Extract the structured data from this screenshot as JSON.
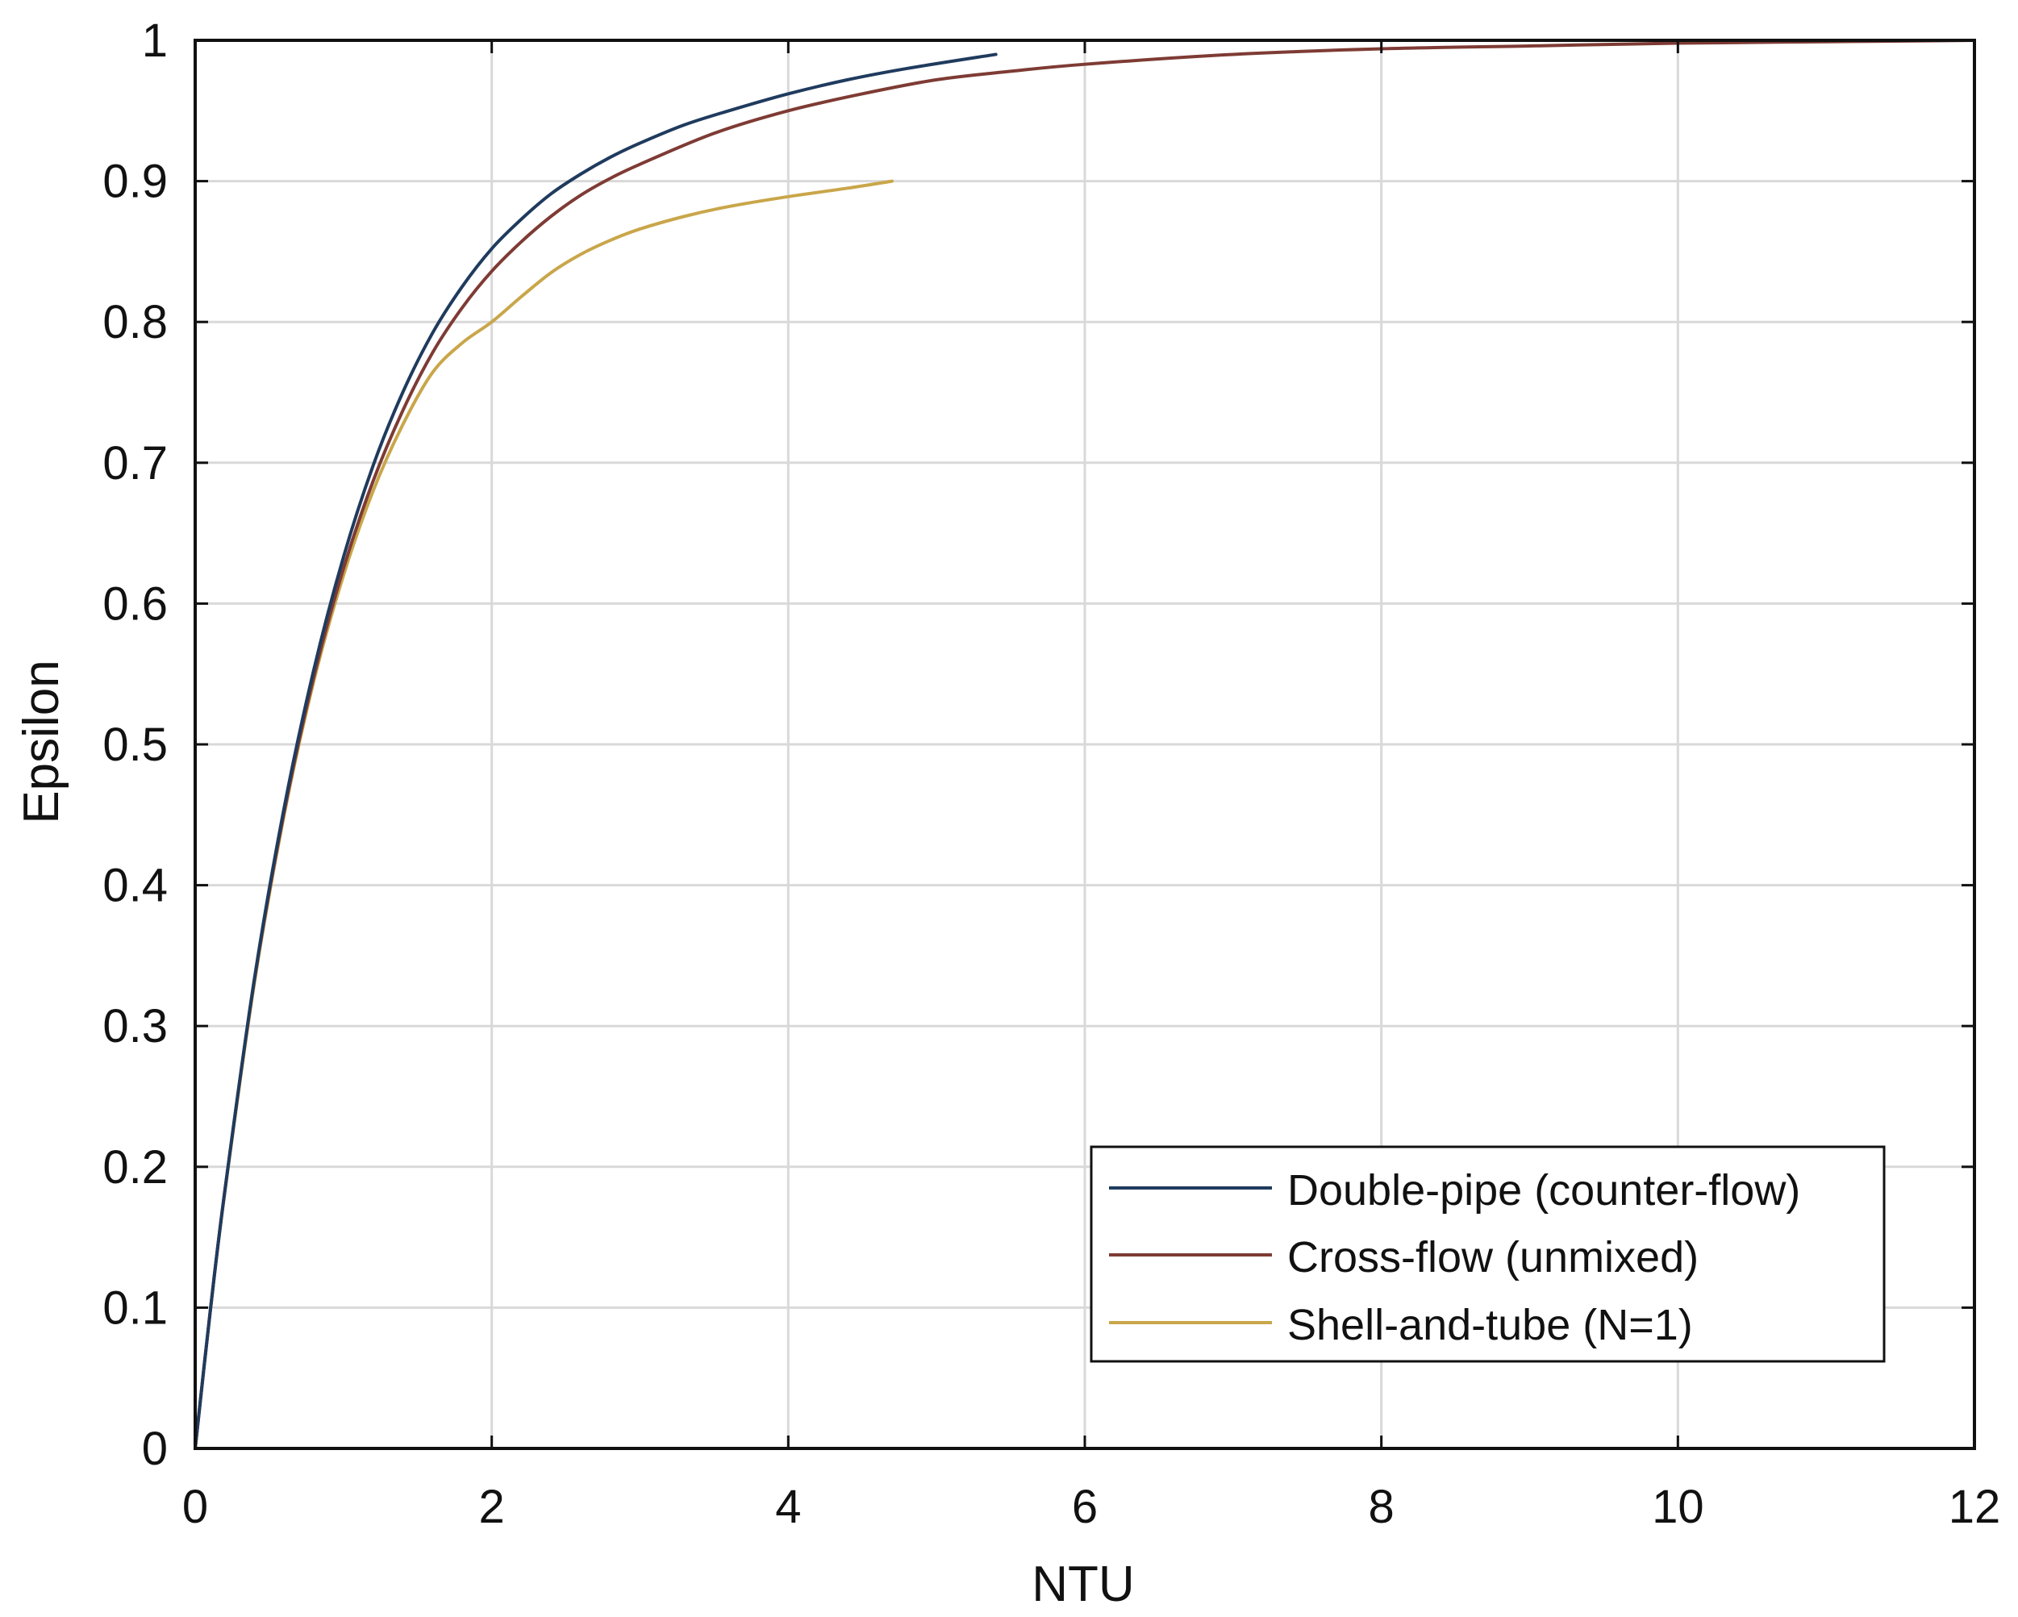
{
  "chart_data": {
    "type": "line",
    "title": "",
    "xlabel": "NTU",
    "ylabel": "Epsilon",
    "xlim": [
      0,
      12
    ],
    "ylim": [
      0,
      1
    ],
    "x_ticks": [
      0,
      2,
      4,
      6,
      8,
      10,
      12
    ],
    "y_ticks": [
      0,
      0.1,
      0.2,
      0.3,
      0.4,
      0.5,
      0.6,
      0.7,
      0.8,
      0.9,
      1
    ],
    "x_tick_labels": [
      "0",
      "2",
      "4",
      "6",
      "8",
      "10",
      "12"
    ],
    "y_tick_labels": [
      "0",
      "0.1",
      "0.2",
      "0.3",
      "0.4",
      "0.5",
      "0.6",
      "0.7",
      "0.8",
      "0.9",
      "1"
    ],
    "grid": true,
    "legend_position": "bottom-right",
    "series": [
      {
        "name": "Double-pipe (counter-flow)",
        "color": "#1f3b5e",
        "x": [
          0,
          0.1,
          0.2,
          0.4,
          0.6,
          0.8,
          1.0,
          1.2,
          1.4,
          1.6,
          1.8,
          2.0,
          2.2,
          2.4,
          2.6,
          2.8,
          3.0,
          3.3,
          3.6,
          4.0,
          4.4,
          4.8,
          5.4
        ],
        "y": [
          0,
          0.096,
          0.183,
          0.334,
          0.455,
          0.553,
          0.633,
          0.698,
          0.75,
          0.792,
          0.825,
          0.852,
          0.873,
          0.891,
          0.905,
          0.917,
          0.927,
          0.94,
          0.95,
          0.962,
          0.972,
          0.98,
          0.99
        ]
      },
      {
        "name": "Cross-flow (unmixed)",
        "color": "#7e3b34",
        "x": [
          0,
          0.1,
          0.2,
          0.4,
          0.6,
          0.8,
          1.0,
          1.2,
          1.4,
          1.6,
          1.8,
          2.0,
          2.2,
          2.4,
          2.6,
          2.8,
          3.0,
          3.5,
          4.0,
          4.5,
          5.0,
          5.5,
          6.0,
          7.0,
          8.0,
          9.0,
          10.0,
          11.0,
          12.0
        ],
        "y": [
          0,
          0.096,
          0.183,
          0.333,
          0.452,
          0.548,
          0.625,
          0.687,
          0.737,
          0.778,
          0.81,
          0.836,
          0.857,
          0.875,
          0.89,
          0.902,
          0.912,
          0.934,
          0.95,
          0.962,
          0.972,
          0.978,
          0.983,
          0.99,
          0.994,
          0.996,
          0.998,
          0.999,
          1.0
        ]
      },
      {
        "name": "Shell-and-tube (N=1)",
        "color": "#c9a64a",
        "x": [
          0,
          0.1,
          0.2,
          0.4,
          0.6,
          0.8,
          1.0,
          1.2,
          1.4,
          1.6,
          1.8,
          2.0,
          2.2,
          2.4,
          2.6,
          2.8,
          3.0,
          3.3,
          3.6,
          4.0,
          4.4,
          4.7
        ],
        "y": [
          0,
          0.096,
          0.182,
          0.331,
          0.45,
          0.545,
          0.62,
          0.68,
          0.727,
          0.764,
          0.785,
          0.8,
          0.818,
          0.835,
          0.848,
          0.858,
          0.866,
          0.875,
          0.882,
          0.889,
          0.895,
          0.9
        ]
      }
    ]
  }
}
